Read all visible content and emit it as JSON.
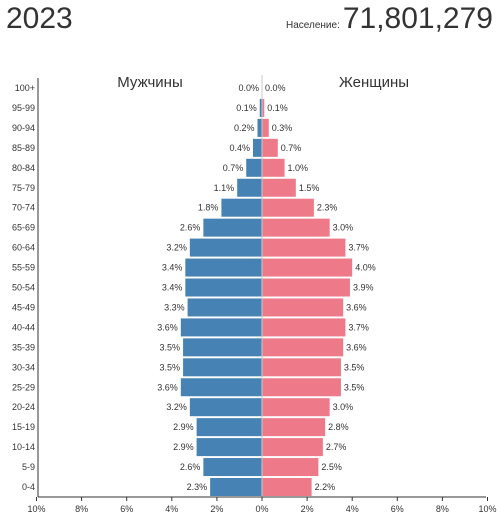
{
  "header": {
    "year": "2023",
    "population_label": "Население:",
    "population_value": "71,801,279"
  },
  "chart_data": {
    "type": "bar",
    "title": "",
    "left_label": "Мужчины",
    "right_label": "Женщины",
    "categories": [
      "100+",
      "95-99",
      "90-94",
      "85-89",
      "80-84",
      "75-79",
      "70-74",
      "65-69",
      "60-64",
      "55-59",
      "50-54",
      "45-49",
      "40-44",
      "35-39",
      "30-34",
      "25-29",
      "20-24",
      "15-19",
      "10-14",
      "5-9",
      "0-4"
    ],
    "series": [
      {
        "name": "Мужчины",
        "values": [
          0.0,
          0.1,
          0.2,
          0.4,
          0.7,
          1.1,
          1.8,
          2.6,
          3.2,
          3.4,
          3.4,
          3.3,
          3.6,
          3.5,
          3.5,
          3.6,
          3.2,
          2.9,
          2.9,
          2.6,
          2.3
        ]
      },
      {
        "name": "Женщины",
        "values": [
          0.0,
          0.1,
          0.3,
          0.7,
          1.0,
          1.5,
          2.3,
          3.0,
          3.7,
          4.0,
          3.9,
          3.6,
          3.7,
          3.6,
          3.5,
          3.5,
          3.0,
          2.8,
          2.7,
          2.5,
          2.2
        ]
      }
    ],
    "x_ticks": [
      "10%",
      "8%",
      "6%",
      "4%",
      "2%",
      "0%",
      "2%",
      "4%",
      "6%",
      "8%",
      "10%"
    ],
    "xlim": [
      -10,
      10
    ],
    "colors": {
      "male": "#4682b4",
      "female": "#ee7989"
    }
  }
}
